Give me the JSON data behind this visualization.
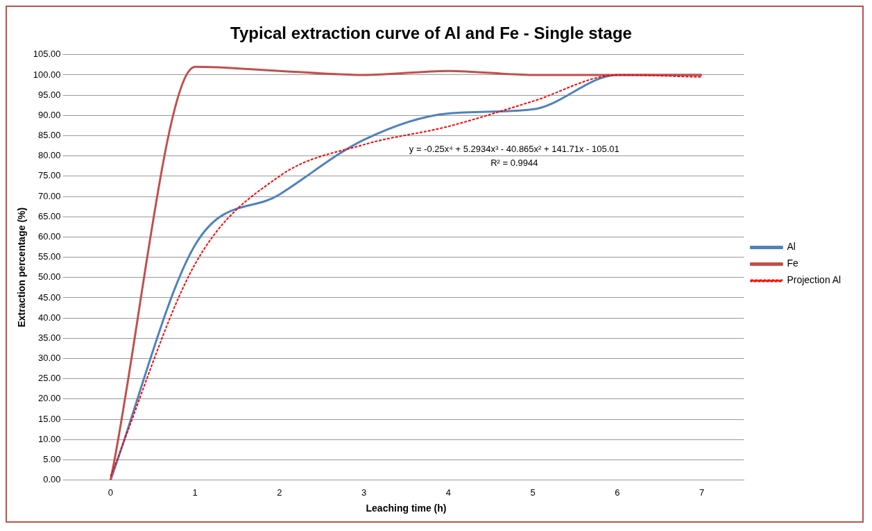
{
  "chart_data": {
    "type": "line",
    "title": "Typical extraction curve of Al and Fe - Single stage",
    "xlabel": "Leaching time (h)",
    "ylabel": "Extraction percentage (%)",
    "categories": [
      "0",
      "1",
      "2",
      "3",
      "4",
      "5",
      "6",
      "7"
    ],
    "series": [
      {
        "name": "Al",
        "color": "#4f81bd",
        "values": [
          0,
          58,
          70.5,
          84,
          90.5,
          91.5,
          100,
          100
        ]
      },
      {
        "name": "Fe",
        "color": "#c0504d",
        "values": [
          0,
          102,
          101,
          100,
          101,
          100,
          100,
          100
        ]
      },
      {
        "name": "Projection Al",
        "color": "#ff0000",
        "line_style": "dashed",
        "values": [
          0.9,
          53.3,
          75.0,
          82.8,
          87.3,
          93.5,
          100.0,
          99.5
        ]
      }
    ],
    "ylim": [
      0,
      105
    ],
    "yticks": [
      {
        "value": 0,
        "label": "0.00"
      },
      {
        "value": 5,
        "label": "5.00"
      },
      {
        "value": 10,
        "label": "10.00"
      },
      {
        "value": 15,
        "label": "15.00"
      },
      {
        "value": 20,
        "label": "20.00"
      },
      {
        "value": 25,
        "label": "25.00"
      },
      {
        "value": 30,
        "label": "30.00"
      },
      {
        "value": 35,
        "label": "35.00"
      },
      {
        "value": 40,
        "label": "40.00"
      },
      {
        "value": 45,
        "label": "45.00"
      },
      {
        "value": 50,
        "label": "50.00"
      },
      {
        "value": 55,
        "label": "55.00"
      },
      {
        "value": 60,
        "label": "60.00"
      },
      {
        "value": 65,
        "label": "65.00"
      },
      {
        "value": 70,
        "label": "70.00"
      },
      {
        "value": 75,
        "label": "75.00"
      },
      {
        "value": 80,
        "label": "80.00"
      },
      {
        "value": 85,
        "label": "85.00"
      },
      {
        "value": 90,
        "label": "90.00"
      },
      {
        "value": 95,
        "label": "95.00"
      },
      {
        "value": 100,
        "label": "100.00"
      },
      {
        "value": 105,
        "label": "105.00"
      }
    ],
    "annotations": [
      "y = -0.25x⁴ + 5.2934x³ - 40.865x² + 141.71x - 105.01",
      "R² = 0.9944"
    ],
    "grid": "y",
    "legend": "right",
    "marker": "none",
    "line_style": "solid"
  }
}
